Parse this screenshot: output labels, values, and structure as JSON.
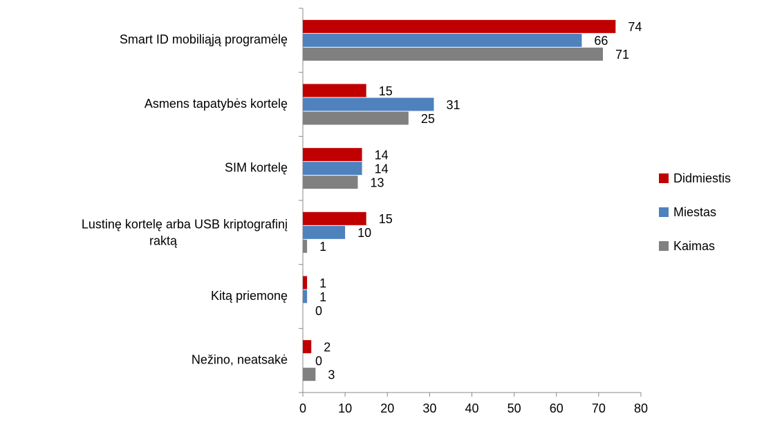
{
  "chart_data": {
    "type": "bar",
    "orientation": "horizontal",
    "categories": [
      "Smart ID mobiliąją programėlę",
      "Asmens tapatybės kortelę",
      "SIM kortelę",
      "Lustinę kortelę arba USB kriptografinį raktą",
      "Kitą priemonę",
      "Nežino, neatsakė"
    ],
    "series": [
      {
        "name": "Didmiestis",
        "color": "#c00000",
        "values": [
          74,
          15,
          14,
          15,
          1,
          2
        ]
      },
      {
        "name": "Miestas",
        "color": "#4f81bd",
        "values": [
          66,
          31,
          14,
          10,
          1,
          0
        ]
      },
      {
        "name": "Kaimas",
        "color": "#808080",
        "values": [
          71,
          25,
          13,
          1,
          0,
          3
        ]
      }
    ],
    "xlim": [
      0,
      80
    ],
    "xticks": [
      0,
      10,
      20,
      30,
      40,
      50,
      60,
      70,
      80
    ],
    "legend": "right",
    "grid": false
  }
}
